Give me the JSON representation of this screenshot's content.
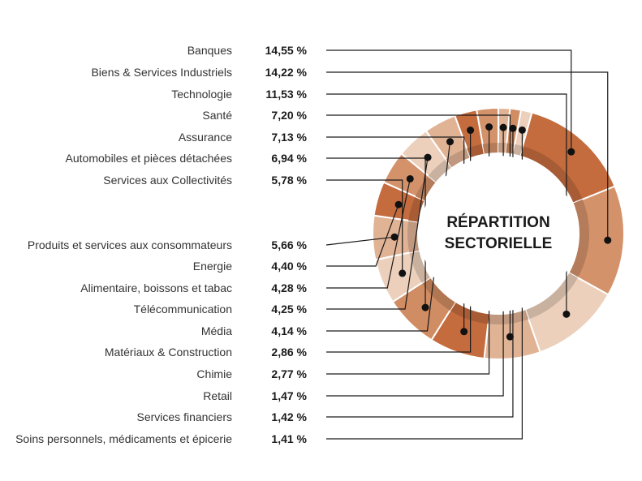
{
  "chart_data": {
    "type": "pie",
    "title": "RÉPARTITION SECTORIELLE",
    "title_lines": [
      "RÉPARTITION",
      "SECTORIELLE"
    ],
    "categories": [
      "Banques",
      "Biens & Services Industriels",
      "Technologie",
      "Santé",
      "Assurance",
      "Automobiles et pièces détachées",
      "Services aux Collectivités",
      "Produits et services aux consommateurs",
      "Energie",
      "Alimentaire, boissons et tabac",
      "Télécommunication",
      "Média",
      "Matériaux & Construction",
      "Chimie",
      "Retail",
      "Services financiers",
      "Soins personnels, médicaments et épicerie"
    ],
    "values": [
      14.55,
      14.22,
      11.53,
      7.2,
      7.13,
      6.94,
      5.78,
      5.66,
      4.4,
      4.28,
      4.25,
      4.14,
      2.86,
      2.77,
      1.47,
      1.42,
      1.41
    ],
    "value_labels": [
      "14,55 %",
      "14,22 %",
      "11,53 %",
      "7,20 %",
      "7,13 %",
      "6,94 %",
      "5,78 %",
      "5,66 %",
      "4,40 %",
      "4,28 %",
      "4,25 %",
      "4,14 %",
      "2,86 %",
      "2,77 %",
      "1,47 %",
      "1,42 %",
      "1,41 %"
    ],
    "colors": [
      "#c46c3e",
      "#d4926a",
      "#ecd0bc",
      "#e1b395",
      "#c46c3e",
      "#d08c62",
      "#ecd0bc",
      "#e1b395",
      "#c46c3e",
      "#d4926a",
      "#ecd0bc",
      "#e1b395",
      "#c46c3e",
      "#d4926a",
      "#e1b395",
      "#d08c62",
      "#ecd0bc"
    ],
    "legend": "left"
  }
}
